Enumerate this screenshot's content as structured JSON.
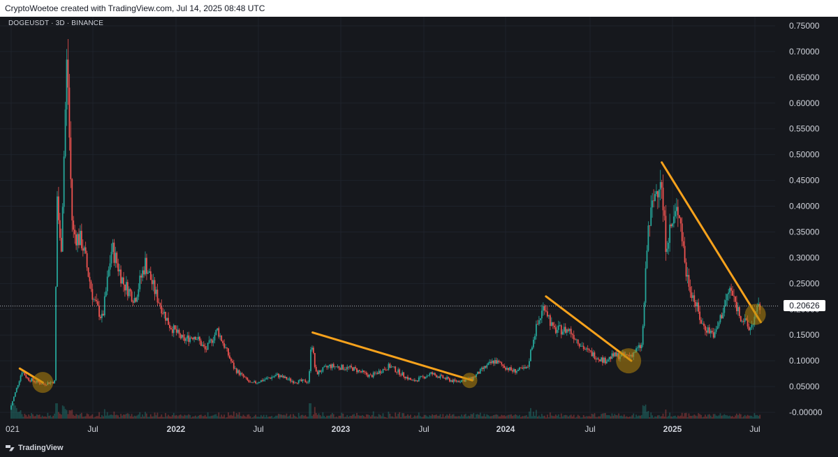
{
  "header": {
    "caption": "CryptoWoetoe created with TradingView.com, Jul 14, 2025 08:48 UTC"
  },
  "symbol": "DOGEUSDT · 3D · BINANCE",
  "brand": "TradingView",
  "colors": {
    "up": "#26a69a",
    "down": "#ef5350",
    "trendline": "#f7a21c",
    "circle": "#b8860b",
    "axis_text": "#d1d4dc"
  },
  "chart_data": {
    "type": "candlestick",
    "last_price": 0.20626,
    "last_price_label": "0.20626",
    "ylim": [
      -0.01,
      0.76
    ],
    "y_ticks": [
      "0.75000",
      "0.70000",
      "0.65000",
      "0.60000",
      "0.55000",
      "0.50000",
      "0.45000",
      "0.40000",
      "0.35000",
      "0.30000",
      "0.25000",
      "0.20000",
      "0.15000",
      "0.10000",
      "0.05000",
      "-0.00000"
    ],
    "y_tick_values": [
      0.75,
      0.7,
      0.65,
      0.6,
      0.55,
      0.5,
      0.45,
      0.4,
      0.35,
      0.3,
      0.25,
      0.2,
      0.15,
      0.1,
      0.05,
      0.0
    ],
    "x_ticks": [
      {
        "label": "021",
        "date": "2021-01-01"
      },
      {
        "label": "Jul",
        "date": "2021-07-01"
      },
      {
        "label": "2022",
        "date": "2022-01-01"
      },
      {
        "label": "Jul",
        "date": "2022-07-01"
      },
      {
        "label": "2023",
        "date": "2023-01-01"
      },
      {
        "label": "Jul",
        "date": "2023-07-01"
      },
      {
        "label": "2024",
        "date": "2024-01-01"
      },
      {
        "label": "Jul",
        "date": "2024-07-01"
      },
      {
        "label": "2025",
        "date": "2025-01-01"
      },
      {
        "label": "Jul",
        "date": "2025-07-01"
      }
    ],
    "price_path": [
      [
        "2021-01-01",
        0.005
      ],
      [
        "2021-01-28",
        0.08
      ],
      [
        "2021-02-10",
        0.065
      ],
      [
        "2021-03-15",
        0.055
      ],
      [
        "2021-04-10",
        0.06
      ],
      [
        "2021-04-16",
        0.42
      ],
      [
        "2021-04-24",
        0.3
      ],
      [
        "2021-05-08",
        0.7
      ],
      [
        "2021-05-14",
        0.5
      ],
      [
        "2021-05-20",
        0.35
      ],
      [
        "2021-06-10",
        0.33
      ],
      [
        "2021-07-05",
        0.22
      ],
      [
        "2021-07-25",
        0.18
      ],
      [
        "2021-08-15",
        0.32
      ],
      [
        "2021-09-10",
        0.25
      ],
      [
        "2021-10-05",
        0.22
      ],
      [
        "2021-10-28",
        0.29
      ],
      [
        "2021-11-20",
        0.23
      ],
      [
        "2021-12-20",
        0.17
      ],
      [
        "2022-01-20",
        0.14
      ],
      [
        "2022-02-15",
        0.15
      ],
      [
        "2022-03-10",
        0.12
      ],
      [
        "2022-04-05",
        0.16
      ],
      [
        "2022-05-12",
        0.085
      ],
      [
        "2022-06-18",
        0.055
      ],
      [
        "2022-08-15",
        0.072
      ],
      [
        "2022-09-20",
        0.06
      ],
      [
        "2022-10-25",
        0.06
      ],
      [
        "2022-10-30",
        0.145
      ],
      [
        "2022-11-09",
        0.075
      ],
      [
        "2022-12-10",
        0.09
      ],
      [
        "2023-01-30",
        0.085
      ],
      [
        "2023-03-10",
        0.07
      ],
      [
        "2023-04-20",
        0.09
      ],
      [
        "2023-06-10",
        0.06
      ],
      [
        "2023-07-20",
        0.075
      ],
      [
        "2023-09-10",
        0.06
      ],
      [
        "2023-10-20",
        0.065
      ],
      [
        "2023-11-15",
        0.085
      ],
      [
        "2023-12-10",
        0.1
      ],
      [
        "2024-01-20",
        0.08
      ],
      [
        "2024-02-20",
        0.085
      ],
      [
        "2024-03-05",
        0.15
      ],
      [
        "2024-03-28",
        0.21
      ],
      [
        "2024-04-15",
        0.16
      ],
      [
        "2024-05-20",
        0.16
      ],
      [
        "2024-06-25",
        0.12
      ],
      [
        "2024-08-05",
        0.1
      ],
      [
        "2024-08-25",
        0.11
      ],
      [
        "2024-10-01",
        0.11
      ],
      [
        "2024-10-28",
        0.13
      ],
      [
        "2024-11-10",
        0.35
      ],
      [
        "2024-11-25",
        0.42
      ],
      [
        "2024-12-08",
        0.46
      ],
      [
        "2024-12-20",
        0.33
      ],
      [
        "2025-01-18",
        0.4
      ],
      [
        "2025-02-03",
        0.27
      ],
      [
        "2025-03-10",
        0.17
      ],
      [
        "2025-04-07",
        0.15
      ],
      [
        "2025-05-10",
        0.24
      ],
      [
        "2025-06-01",
        0.19
      ],
      [
        "2025-06-22",
        0.16
      ],
      [
        "2025-07-14",
        0.206
      ]
    ],
    "trendlines": [
      [
        [
          "2021-01-20",
          0.085
        ],
        [
          "2021-03-12",
          0.058
        ]
      ],
      [
        [
          "2022-10-30",
          0.155
        ],
        [
          "2023-10-18",
          0.062
        ]
      ],
      [
        [
          "2024-03-28",
          0.225
        ],
        [
          "2024-10-01",
          0.1
        ]
      ],
      [
        [
          "2024-12-08",
          0.485
        ],
        [
          "2025-07-14",
          0.175
        ]
      ]
    ],
    "circles": [
      [
        "2021-03-12",
        0.058
      ],
      [
        "2023-10-12",
        0.062
      ],
      [
        "2024-09-25",
        0.1
      ],
      [
        "2025-07-02",
        0.19
      ]
    ]
  }
}
